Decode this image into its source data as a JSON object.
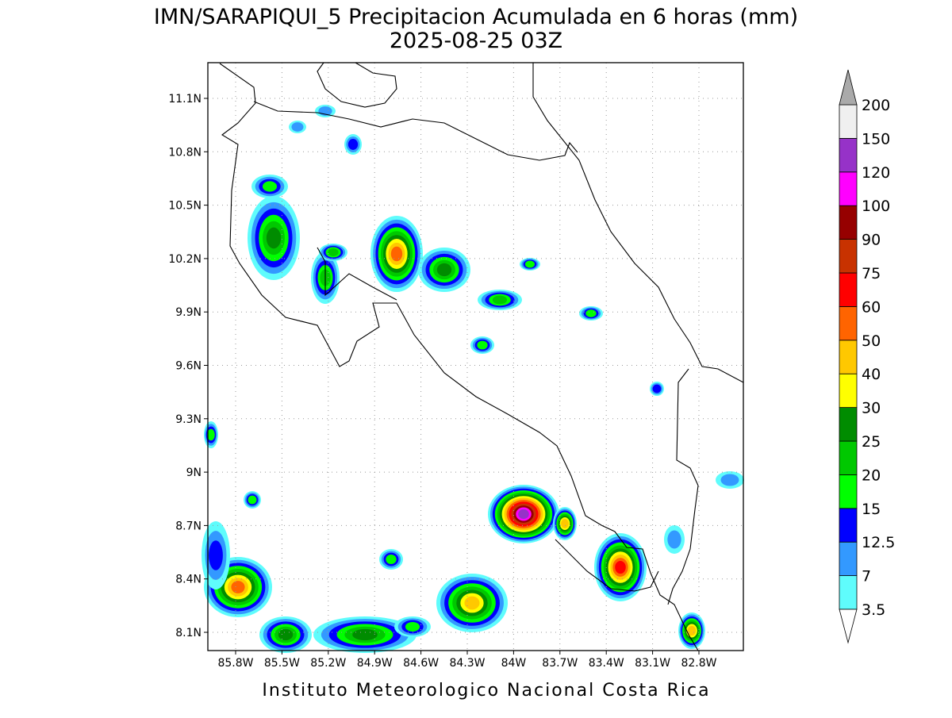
{
  "title": "IMN/SARAPIQUI_5 Precipitacion Acumulada en 6 horas (mm)",
  "subtitle": "2025-08-25 03Z",
  "map": {
    "lon_ticks": [
      "85.8W",
      "85.5W",
      "85.2W",
      "84.9W",
      "84.6W",
      "84.3W",
      "84W",
      "83.7W",
      "83.4W",
      "83.1W",
      "82.8W"
    ],
    "lat_ticks": [
      "11.1N",
      "10.8N",
      "10.5N",
      "10.2N",
      "9.9N",
      "9.6N",
      "9.3N",
      "9N",
      "8.7N",
      "8.4N",
      "8.1N"
    ]
  },
  "colorbar": {
    "levels": [
      "3.5",
      "7",
      "12.5",
      "15",
      "20",
      "25",
      "30",
      "40",
      "50",
      "60",
      "75",
      "90",
      "100",
      "120",
      "150",
      "200"
    ],
    "band_colors": [
      "#5ffcfc",
      "#3399ff",
      "#0000ff",
      "#00ff00",
      "#00c800",
      "#008c00",
      "#ffff00",
      "#ffc800",
      "#ff6400",
      "#ff0000",
      "#c83200",
      "#960000",
      "#ff00ff",
      "#9632c8",
      "#f0f0f0"
    ],
    "under_color": "#ffffff",
    "over_color": "#aaaaaa"
  },
  "footer": "Instituto Meteorologico Nacional Costa Rica"
}
